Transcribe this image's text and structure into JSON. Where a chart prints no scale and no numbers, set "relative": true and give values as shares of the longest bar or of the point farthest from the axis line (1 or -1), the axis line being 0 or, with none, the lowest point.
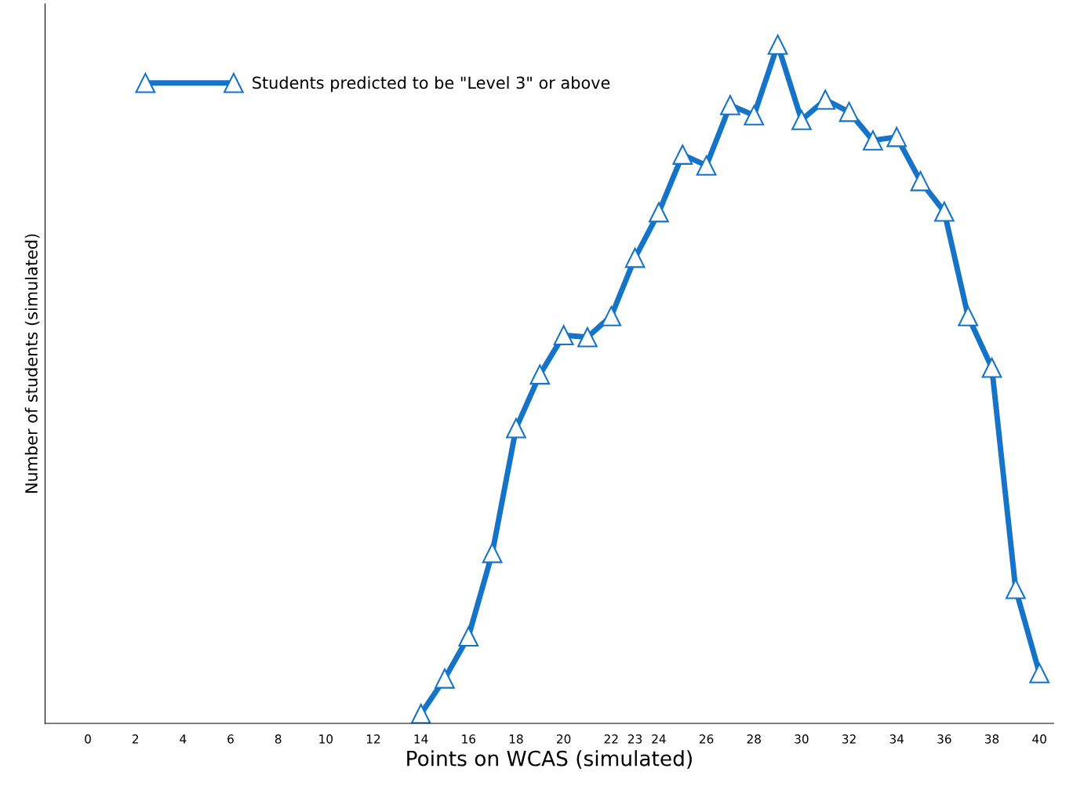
{
  "chart_data": {
    "type": "line",
    "xlabel": "Points on WCAS (simulated)",
    "ylabel": "Number of students (simulated)",
    "relative": true,
    "xlim": [
      -1.8,
      40.6
    ],
    "xticks": [
      0,
      2,
      4,
      6,
      8,
      10,
      12,
      14,
      16,
      18,
      20,
      22,
      23,
      24,
      26,
      28,
      30,
      32,
      34,
      36,
      38,
      40
    ],
    "marker": "triangle",
    "line_style": "solid",
    "grid": false,
    "legend": "top left",
    "series": [
      {
        "name": "Students predicted to be \"Level 3\" or above",
        "color": "#1573c8",
        "x": [
          14,
          15,
          16,
          17,
          18,
          19,
          20,
          21,
          22,
          23,
          24,
          25,
          26,
          27,
          28,
          29,
          30,
          31,
          32,
          33,
          34,
          35,
          36,
          37,
          38,
          39,
          40
        ],
        "values": [
          0.014,
          0.066,
          0.128,
          0.251,
          0.435,
          0.514,
          0.572,
          0.569,
          0.6,
          0.686,
          0.753,
          0.838,
          0.822,
          0.911,
          0.896,
          1.0,
          0.889,
          0.919,
          0.901,
          0.859,
          0.864,
          0.799,
          0.754,
          0.6,
          0.524,
          0.198,
          0.074
        ]
      }
    ]
  }
}
